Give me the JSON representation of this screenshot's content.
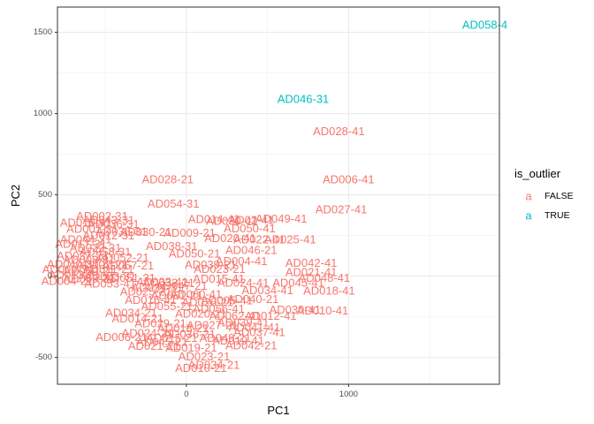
{
  "chart_data": {
    "type": "scatter",
    "xlabel": "PC1",
    "ylabel": "PC2",
    "xlim": [
      -795,
      1930
    ],
    "ylim": [
      -665,
      1655
    ],
    "xticks": [
      0,
      1000
    ],
    "yticks": [
      -500,
      0,
      500,
      1000,
      1500
    ],
    "grid": true,
    "legend": {
      "title": "is_outlier",
      "position": "right",
      "glyph": "a",
      "entries": [
        {
          "label": "FALSE",
          "color": "#F8766D"
        },
        {
          "label": "TRUE",
          "color": "#00BFC4"
        }
      ]
    },
    "points": [
      {
        "label": "AD058-4",
        "x": 1840,
        "y": 1545,
        "outlier": true
      },
      {
        "label": "AD046-31",
        "x": 720,
        "y": 1090,
        "outlier": true
      },
      {
        "label": "AD028-41",
        "x": 940,
        "y": 892,
        "outlier": false
      },
      {
        "label": "AD028-21",
        "x": -115,
        "y": 595,
        "outlier": false
      },
      {
        "label": "AD006-41",
        "x": 1000,
        "y": 595,
        "outlier": false
      },
      {
        "label": "AD027-41",
        "x": 955,
        "y": 412,
        "outlier": false
      },
      {
        "label": "AD054-31",
        "x": -80,
        "y": 445,
        "outlier": false
      },
      {
        "label": "AD049-41",
        "x": 585,
        "y": 355,
        "outlier": false
      },
      {
        "label": "AD014-41",
        "x": 170,
        "y": 350,
        "outlier": false
      },
      {
        "label": "AD02-41",
        "x": 400,
        "y": 345,
        "outlier": false
      },
      {
        "label": "AD030-41",
        "x": 280,
        "y": 340,
        "outlier": false
      },
      {
        "label": "AD050-41",
        "x": 390,
        "y": 295,
        "outlier": false
      },
      {
        "label": "AD030-21",
        "x": -250,
        "y": 272,
        "outlier": false
      },
      {
        "label": "AD009-21",
        "x": 20,
        "y": 268,
        "outlier": false
      },
      {
        "label": "AD020-41",
        "x": 270,
        "y": 235,
        "outlier": false
      },
      {
        "label": "AD022-41",
        "x": 450,
        "y": 225,
        "outlier": false
      },
      {
        "label": "AD025-41",
        "x": 640,
        "y": 225,
        "outlier": false
      },
      {
        "label": "AD038-31",
        "x": -90,
        "y": 185,
        "outlier": false
      },
      {
        "label": "AD046-21",
        "x": 400,
        "y": 162,
        "outlier": false
      },
      {
        "label": "AD050-21",
        "x": 50,
        "y": 140,
        "outlier": false
      },
      {
        "label": "AD004-41",
        "x": 340,
        "y": 92,
        "outlier": false
      },
      {
        "label": "AD042-41",
        "x": 770,
        "y": 82,
        "outlier": false
      },
      {
        "label": "AD039-21",
        "x": 150,
        "y": 70,
        "outlier": false
      },
      {
        "label": "AD023-21",
        "x": 205,
        "y": 45,
        "outlier": false
      },
      {
        "label": "AD021-41",
        "x": 770,
        "y": 25,
        "outlier": false
      },
      {
        "label": "AD048-41",
        "x": 850,
        "y": -10,
        "outlier": false
      },
      {
        "label": "AD033-41",
        "x": -150,
        "y": -35,
        "outlier": false
      },
      {
        "label": "AD053-41",
        "x": -470,
        "y": -45,
        "outlier": false
      },
      {
        "label": "AD063-31",
        "x": -600,
        "y": -15,
        "outlier": false
      },
      {
        "label": "AD004-21",
        "x": -735,
        "y": -30,
        "outlier": false
      },
      {
        "label": "AD045-41",
        "x": 690,
        "y": -40,
        "outlier": false
      },
      {
        "label": "AD015-41",
        "x": 200,
        "y": -15,
        "outlier": false
      },
      {
        "label": "AD024-41",
        "x": 350,
        "y": -40,
        "outlier": false
      },
      {
        "label": "AD018-41",
        "x": 880,
        "y": -90,
        "outlier": false
      },
      {
        "label": "AD034-41",
        "x": 500,
        "y": -85,
        "outlier": false
      },
      {
        "label": "AD025-21",
        "x": -250,
        "y": -95,
        "outlier": false
      },
      {
        "label": "AD040-21",
        "x": 410,
        "y": -140,
        "outlier": false
      },
      {
        "label": "AD016-41",
        "x": -220,
        "y": -145,
        "outlier": false
      },
      {
        "label": "AD026-21",
        "x": 130,
        "y": -160,
        "outlier": false
      },
      {
        "label": "AD030-41",
        "x": 670,
        "y": -205,
        "outlier": false
      },
      {
        "label": "AD010-41",
        "x": 840,
        "y": -210,
        "outlier": false
      },
      {
        "label": "AD034-21",
        "x": -340,
        "y": -225,
        "outlier": false
      },
      {
        "label": "AD020-21",
        "x": 90,
        "y": -230,
        "outlier": false
      },
      {
        "label": "AD012-41",
        "x": 520,
        "y": -245,
        "outlier": false
      },
      {
        "label": "AD039-41",
        "x": 350,
        "y": -285,
        "outlier": false
      },
      {
        "label": "AD037-41",
        "x": 450,
        "y": -345,
        "outlier": false
      },
      {
        "label": "AD024-21",
        "x": -240,
        "y": -350,
        "outlier": false
      },
      {
        "label": "AD036-21",
        "x": 20,
        "y": -355,
        "outlier": false
      },
      {
        "label": "AD019-41",
        "x": 320,
        "y": -395,
        "outlier": false
      },
      {
        "label": "AD045-21",
        "x": -150,
        "y": -405,
        "outlier": false
      },
      {
        "label": "AD023-21",
        "x": 110,
        "y": -495,
        "outlier": false
      },
      {
        "label": "AD034-21",
        "x": 170,
        "y": -545,
        "outlier": false
      },
      {
        "label": "AD010-21",
        "x": 90,
        "y": -565,
        "outlier": false
      },
      {
        "label": "AD010-41",
        "x": -620,
        "y": 330,
        "outlier": false
      },
      {
        "label": "AD002-31",
        "x": -520,
        "y": 370,
        "outlier": false
      },
      {
        "label": "AD043-31",
        "x": -480,
        "y": 345,
        "outlier": false
      },
      {
        "label": "AD036-31",
        "x": -450,
        "y": 320,
        "outlier": false
      },
      {
        "label": "AD001-21",
        "x": -580,
        "y": 290,
        "outlier": false
      },
      {
        "label": "AD035-31",
        "x": -400,
        "y": 275,
        "outlier": false
      },
      {
        "label": "AD012-31",
        "x": -480,
        "y": 250,
        "outlier": false
      },
      {
        "label": "AD044-21",
        "x": -620,
        "y": 225,
        "outlier": false
      },
      {
        "label": "AD017-31",
        "x": -650,
        "y": 200,
        "outlier": false
      },
      {
        "label": "AD022-31",
        "x": -560,
        "y": 175,
        "outlier": false
      },
      {
        "label": "AD058-31",
        "x": -500,
        "y": 150,
        "outlier": false
      },
      {
        "label": "AD037-21",
        "x": -640,
        "y": 125,
        "outlier": false
      },
      {
        "label": "AD008-31",
        "x": -600,
        "y": 100,
        "outlier": false
      },
      {
        "label": "AD052-21",
        "x": -390,
        "y": 115,
        "outlier": false
      },
      {
        "label": "AD040-31",
        "x": -700,
        "y": 75,
        "outlier": false
      },
      {
        "label": "AD007-21",
        "x": -520,
        "y": 70,
        "outlier": false
      },
      {
        "label": "AD057-21",
        "x": -360,
        "y": 65,
        "outlier": false
      },
      {
        "label": "AD009-31",
        "x": -730,
        "y": 40,
        "outlier": false
      },
      {
        "label": "AD011-21",
        "x": -480,
        "y": 45,
        "outlier": false
      },
      {
        "label": "AD059-21",
        "x": -600,
        "y": 30,
        "outlier": false
      },
      {
        "label": "AD013-21",
        "x": -690,
        "y": 10,
        "outlier": false
      },
      {
        "label": "AD003-31",
        "x": -470,
        "y": 0,
        "outlier": false
      },
      {
        "label": "AD051-31",
        "x": -350,
        "y": -10,
        "outlier": false
      },
      {
        "label": "AD032-21",
        "x": -110,
        "y": -40,
        "outlier": false
      },
      {
        "label": "AD047-21",
        "x": -30,
        "y": -60,
        "outlier": false
      },
      {
        "label": "AD031-31",
        "x": -180,
        "y": -70,
        "outlier": false
      },
      {
        "label": "AD060-41",
        "x": 60,
        "y": -110,
        "outlier": false
      },
      {
        "label": "AD061-21",
        "x": -60,
        "y": -120,
        "outlier": false
      },
      {
        "label": "AD005-41",
        "x": 250,
        "y": -150,
        "outlier": false
      },
      {
        "label": "AD055-21",
        "x": -120,
        "y": -185,
        "outlier": false
      },
      {
        "label": "AD056-41",
        "x": 200,
        "y": -200,
        "outlier": false
      },
      {
        "label": "AD062-41",
        "x": 300,
        "y": -245,
        "outlier": false
      },
      {
        "label": "AD014-21",
        "x": -300,
        "y": -260,
        "outlier": false
      },
      {
        "label": "AD029-21",
        "x": -160,
        "y": -290,
        "outlier": false
      },
      {
        "label": "AD027-21",
        "x": 160,
        "y": -300,
        "outlier": false
      },
      {
        "label": "AD041-41",
        "x": 420,
        "y": -315,
        "outlier": false
      },
      {
        "label": "AD018-21",
        "x": -20,
        "y": -320,
        "outlier": false
      },
      {
        "label": "AD006-21",
        "x": -400,
        "y": -375,
        "outlier": false
      },
      {
        "label": "AD015-21",
        "x": -90,
        "y": -380,
        "outlier": false
      },
      {
        "label": "AD049-21",
        "x": 240,
        "y": -380,
        "outlier": false
      },
      {
        "label": "AD042-21",
        "x": 400,
        "y": -425,
        "outlier": false
      },
      {
        "label": "AD021-21",
        "x": -200,
        "y": -430,
        "outlier": false
      },
      {
        "label": "AD019-21",
        "x": 30,
        "y": -440,
        "outlier": false
      }
    ]
  }
}
